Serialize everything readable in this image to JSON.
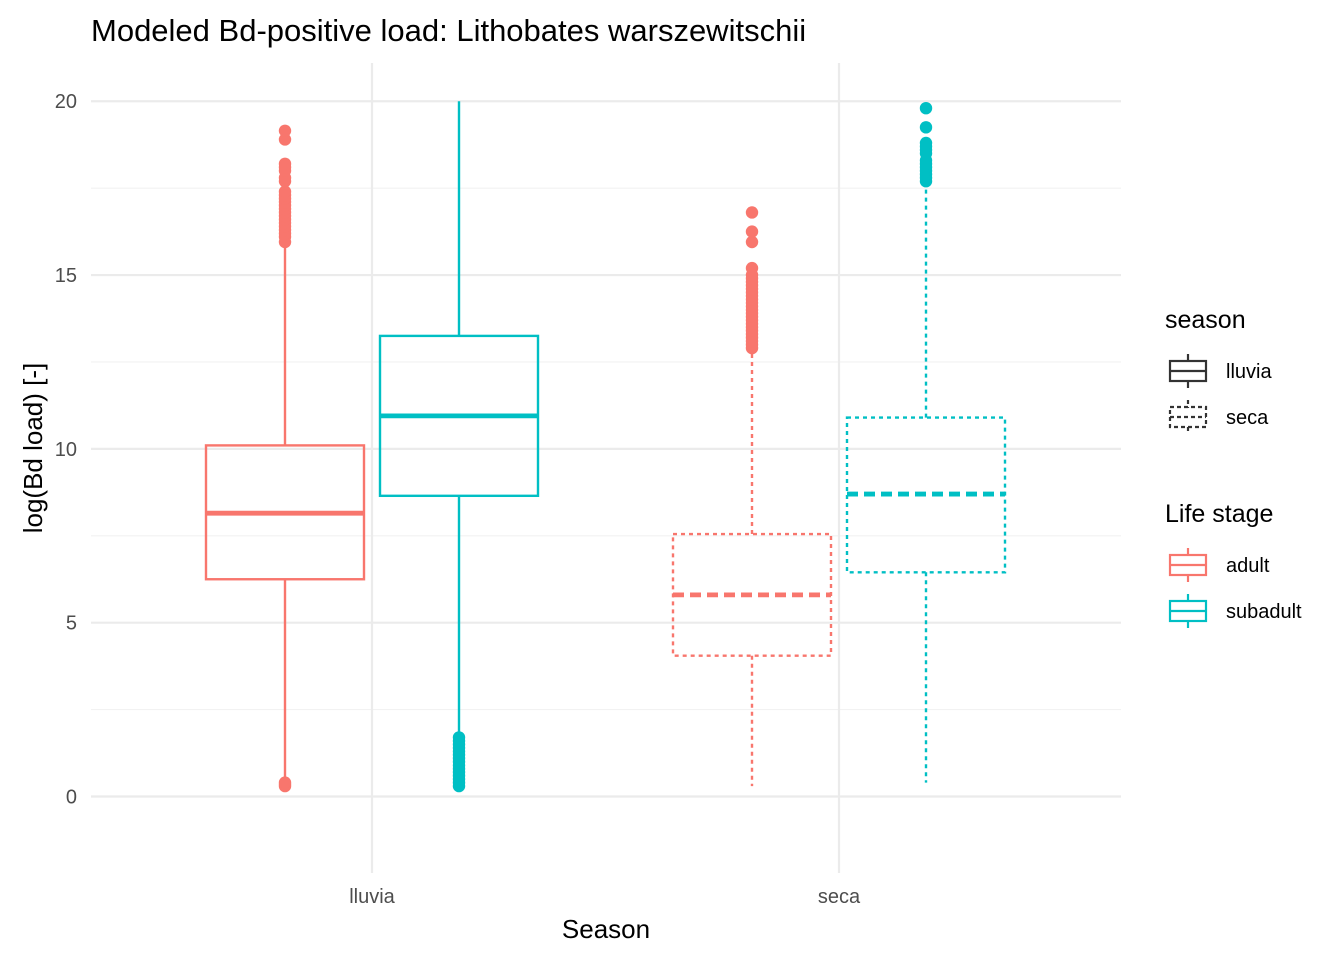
{
  "chart_data": {
    "type": "boxplot",
    "title": "Modeled Bd-positive load: Lithobates warszewitschii",
    "xlabel": "Season",
    "ylabel": "log(Bd load) [-]",
    "categories": [
      "lluvia",
      "seca"
    ],
    "ylim": [
      -2.2,
      21.1
    ],
    "yticks": [
      0,
      5,
      10,
      15,
      20
    ],
    "grid": true,
    "colors": {
      "adult": "#F8766D",
      "subadult": "#00BFC4",
      "legend_key": "#333333"
    },
    "legends": {
      "linetype": {
        "title": "season",
        "items": [
          {
            "label": "lluvia",
            "linetype": "solid"
          },
          {
            "label": "seca",
            "linetype": "dotted"
          }
        ]
      },
      "color": {
        "title": "Life stage",
        "items": [
          {
            "label": "adult",
            "color": "#F8766D"
          },
          {
            "label": "subadult",
            "color": "#00BFC4"
          }
        ]
      },
      "placement": "right"
    },
    "boxes": [
      {
        "season": "lluvia",
        "stage": "adult",
        "linetype": "solid",
        "whisker_low": 0.4,
        "q1": 6.25,
        "median": 8.15,
        "q3": 10.1,
        "whisker_high": 15.9,
        "outliers": [
          0.3,
          0.35,
          0.4,
          15.95,
          16.1,
          16.2,
          16.3,
          16.4,
          16.5,
          16.6,
          16.7,
          16.8,
          16.9,
          17.0,
          17.1,
          17.2,
          17.3,
          17.4,
          17.7,
          17.8,
          18.0,
          18.1,
          18.2,
          18.9,
          19.15
        ]
      },
      {
        "season": "lluvia",
        "stage": "subadult",
        "linetype": "solid",
        "whisker_low": 1.75,
        "q1": 8.65,
        "median": 10.95,
        "q3": 13.25,
        "whisker_high": 20.0,
        "outliers": [
          0.3,
          0.4,
          0.5,
          0.6,
          0.7,
          0.8,
          0.9,
          1.0,
          1.1,
          1.2,
          1.3,
          1.4,
          1.5,
          1.6,
          1.7
        ]
      },
      {
        "season": "seca",
        "stage": "adult",
        "linetype": "dotted",
        "whisker_low": 0.3,
        "q1": 4.05,
        "median": 5.8,
        "q3": 7.55,
        "whisker_high": 12.8,
        "outliers": [
          12.9,
          13.0,
          13.1,
          13.2,
          13.3,
          13.4,
          13.5,
          13.6,
          13.7,
          13.8,
          13.9,
          14.0,
          14.1,
          14.2,
          14.3,
          14.4,
          14.5,
          14.6,
          14.7,
          14.8,
          14.9,
          15.0,
          15.2,
          15.95,
          16.25,
          16.8
        ]
      },
      {
        "season": "seca",
        "stage": "subadult",
        "linetype": "dotted",
        "whisker_low": 0.4,
        "q1": 6.45,
        "median": 8.7,
        "q3": 10.9,
        "whisker_high": 17.6,
        "outliers": [
          17.7,
          17.8,
          17.9,
          18.0,
          18.1,
          18.2,
          18.3,
          18.5,
          18.6,
          18.7,
          18.8,
          19.25,
          19.8
        ]
      }
    ]
  }
}
